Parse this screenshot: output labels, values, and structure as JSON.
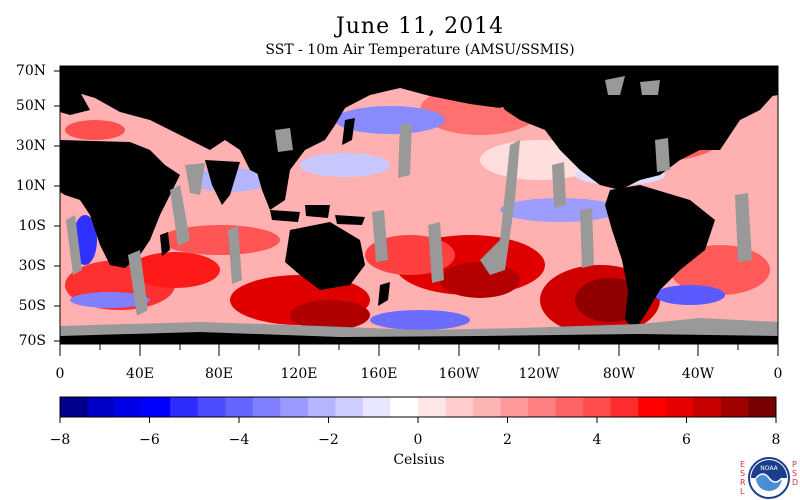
{
  "title": "June 11, 2014",
  "subtitle": "SST - 10m Air Temperature (AMSU/SSMIS)",
  "lat_labels": [
    "70N",
    "50N",
    "30N",
    "10N",
    "10S",
    "30S",
    "50S",
    "70S"
  ],
  "lon_labels": [
    "0",
    "40E",
    "80E",
    "120E",
    "160E",
    "160W",
    "120W",
    "80W",
    "40W",
    "0"
  ],
  "colorbar": {
    "labels": [
      "−8",
      "−6",
      "−4",
      "−2",
      "0",
      "2",
      "4",
      "6",
      "8"
    ],
    "title": "Celsius",
    "colors": [
      "#00008c",
      "#0000c8",
      "#0000e6",
      "#0000ff",
      "#2d2dff",
      "#4b4bff",
      "#6464ff",
      "#8080ff",
      "#9a9aff",
      "#b4b4ff",
      "#cdcdff",
      "#e6e6ff",
      "#ffffff",
      "#ffe6e6",
      "#ffcdcd",
      "#ffb4b4",
      "#ff9a9a",
      "#ff8080",
      "#ff6464",
      "#ff4b4b",
      "#ff2d2d",
      "#ff0000",
      "#e60000",
      "#c80000",
      "#a00000",
      "#780000"
    ]
  },
  "colors": {
    "land": "#000000",
    "no_data": "#999999",
    "ocean_base": "#ffb0b0"
  },
  "logo": {
    "left_letters": "ESRL",
    "right_letters": "PSD",
    "emblem": "NOAA"
  }
}
